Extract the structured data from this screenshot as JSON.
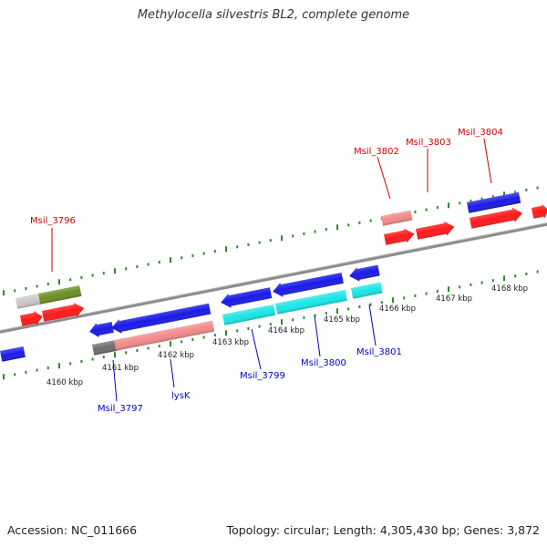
{
  "title": "Methylocella silvestris BL2, complete genome",
  "footer": {
    "accession": "Accession: NC_011666",
    "stats": "Topology: circular; Length: 4,305,430 bp; Genes: 3,872"
  },
  "colors": {
    "backbone": "#8c8c8c",
    "tick": "#2a8a2a",
    "forward_label": "#cc0000",
    "reverse_label": "#0000cc",
    "blue_cds": "#1a1ae6",
    "red_cds": "#ff1a1a",
    "pink_cds": "#f28a8a",
    "cyan_cds": "#1ae6e6",
    "olive_cds": "#6b8e23",
    "gray_cds": "#c8c8c8",
    "darkgray_cds": "#6e6e6e"
  },
  "kbp_labels": [
    "4160 kbp",
    "4161 kbp",
    "4162 kbp",
    "4163 kbp",
    "4164 kbp",
    "4165 kbp",
    "4166 kbp",
    "4167 kbp",
    "4168 kbp"
  ],
  "gene_labels": {
    "forward": [
      "Msil_3796",
      "Msil_3802",
      "Msil_3803",
      "Msil_3804"
    ],
    "reverse": [
      "Msil_3797",
      "lysK",
      "Msil_3799",
      "Msil_3800",
      "Msil_3801"
    ]
  }
}
